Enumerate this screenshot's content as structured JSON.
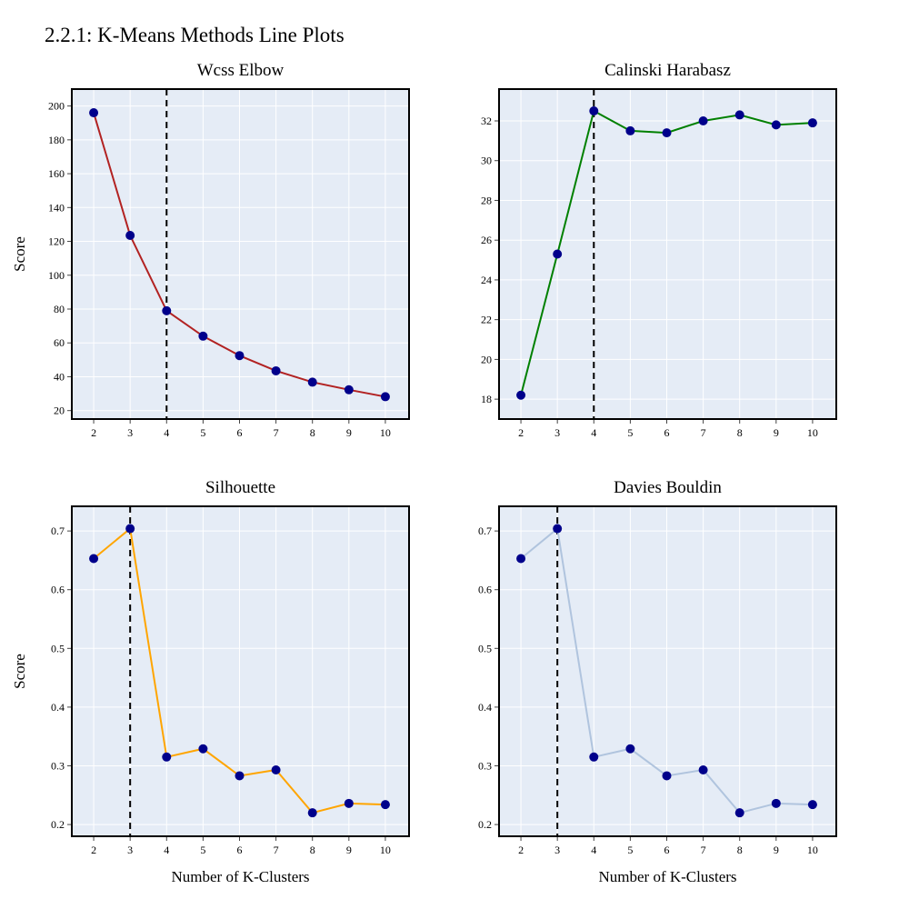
{
  "figure": {
    "title": "2.2.1: K-Means Methods Line Plots"
  },
  "chart_data": [
    {
      "type": "line",
      "title": "Wcss Elbow",
      "xlabel": "",
      "ylabel": "Score",
      "x": [
        2,
        3,
        4,
        5,
        6,
        7,
        8,
        9,
        10
      ],
      "series": [
        {
          "values": [
            196,
            123.5,
            79,
            64,
            52.5,
            43.5,
            36.8,
            32.3,
            28.2
          ],
          "color": "#b22222"
        }
      ],
      "marker_color": "#00008b",
      "vline_x": 4,
      "ylim": [
        15,
        210
      ],
      "yticks": [
        20,
        40,
        60,
        80,
        100,
        120,
        140,
        160,
        180,
        200
      ],
      "xticks": [
        2,
        3,
        4,
        5,
        6,
        7,
        8,
        9,
        10
      ],
      "grid": true,
      "background": "#e5ecf6"
    },
    {
      "type": "line",
      "title": "Calinski Harabasz",
      "xlabel": "",
      "ylabel": "",
      "x": [
        2,
        3,
        4,
        5,
        6,
        7,
        8,
        9,
        10
      ],
      "series": [
        {
          "values": [
            18.2,
            25.3,
            32.5,
            31.5,
            31.4,
            32.0,
            32.3,
            31.8,
            31.9
          ],
          "color": "#008000"
        }
      ],
      "marker_color": "#00008b",
      "vline_x": 4,
      "ylim": [
        17.0,
        33.6
      ],
      "yticks": [
        18,
        20,
        22,
        24,
        26,
        28,
        30,
        32
      ],
      "xticks": [
        2,
        3,
        4,
        5,
        6,
        7,
        8,
        9,
        10
      ],
      "grid": true,
      "background": "#e5ecf6"
    },
    {
      "type": "line",
      "title": "Silhouette",
      "xlabel": "Number of K-Clusters",
      "ylabel": "Score",
      "x": [
        2,
        3,
        4,
        5,
        6,
        7,
        8,
        9,
        10
      ],
      "series": [
        {
          "values": [
            0.653,
            0.704,
            0.315,
            0.329,
            0.283,
            0.293,
            0.22,
            0.236,
            0.234
          ],
          "color": "#ffa500"
        }
      ],
      "marker_color": "#00008b",
      "vline_x": 3,
      "ylim": [
        0.18,
        0.742
      ],
      "yticks": [
        0.2,
        0.3,
        0.4,
        0.5,
        0.6,
        0.7
      ],
      "xticks": [
        2,
        3,
        4,
        5,
        6,
        7,
        8,
        9,
        10
      ],
      "grid": true,
      "background": "#e5ecf6"
    },
    {
      "type": "line",
      "title": "Davies Bouldin",
      "xlabel": "Number of K-Clusters",
      "ylabel": "",
      "x": [
        2,
        3,
        4,
        5,
        6,
        7,
        8,
        9,
        10
      ],
      "series": [
        {
          "values": [
            0.653,
            0.704,
            0.315,
            0.329,
            0.283,
            0.293,
            0.22,
            0.236,
            0.234
          ],
          "color": "#b0c4de"
        }
      ],
      "marker_color": "#00008b",
      "vline_x": 3,
      "ylim": [
        0.18,
        0.742
      ],
      "yticks": [
        0.2,
        0.3,
        0.4,
        0.5,
        0.6,
        0.7
      ],
      "xticks": [
        2,
        3,
        4,
        5,
        6,
        7,
        8,
        9,
        10
      ],
      "grid": true,
      "background": "#e5ecf6"
    }
  ]
}
